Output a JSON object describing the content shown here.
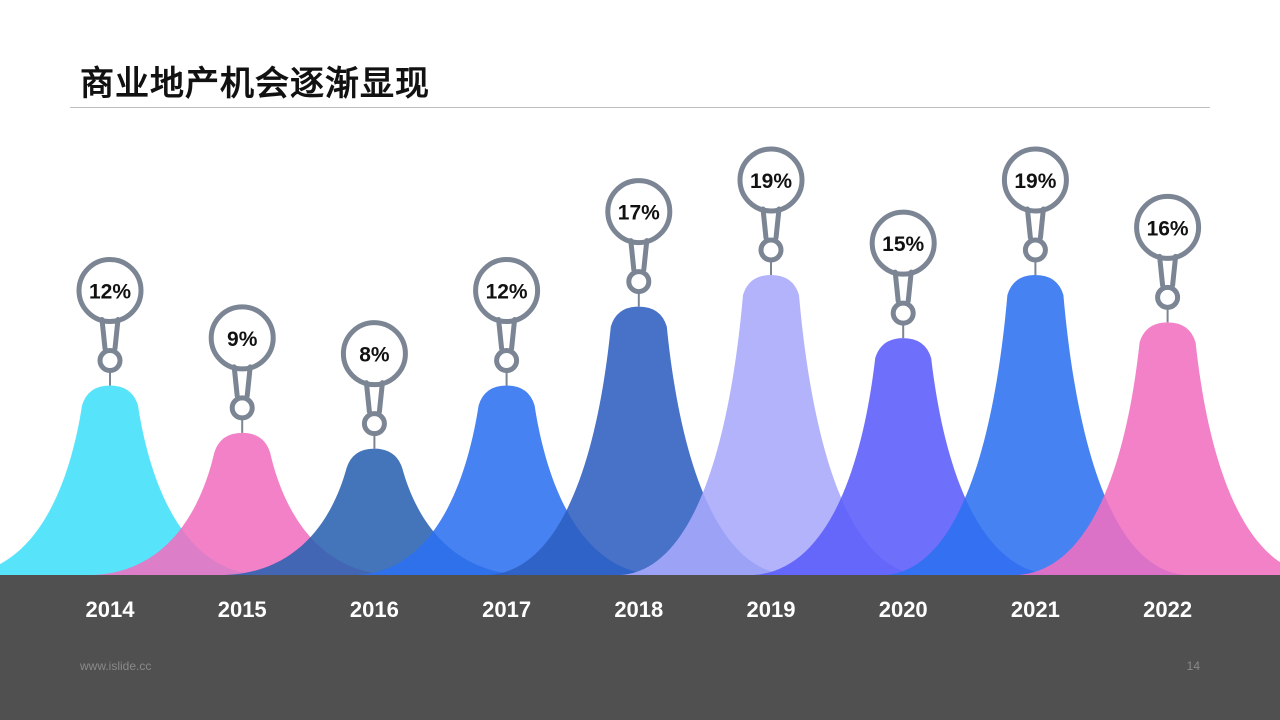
{
  "slide": {
    "title": "商业地产机会逐渐显现",
    "footer_url": "www.islide.cc",
    "page_number": "14"
  },
  "chart_data": {
    "type": "area",
    "title": "商业地产机会逐渐显现",
    "categories": [
      "2014",
      "2015",
      "2016",
      "2017",
      "2018",
      "2019",
      "2020",
      "2021",
      "2022"
    ],
    "values": [
      12,
      9,
      8,
      12,
      17,
      19,
      15,
      19,
      16
    ],
    "labels": [
      "12%",
      "9%",
      "8%",
      "12%",
      "17%",
      "19%",
      "15%",
      "19%",
      "16%"
    ],
    "unit": "%",
    "colors": [
      "#40e0fa",
      "#f070c0",
      "#2a62b0",
      "#2c71f0",
      "#2d5ec0",
      "#a8a8fc",
      "#5a5cfa",
      "#2c71f0",
      "#f070c0"
    ],
    "bubble_color": "#7b8594",
    "legend": "none",
    "grid": false
  }
}
